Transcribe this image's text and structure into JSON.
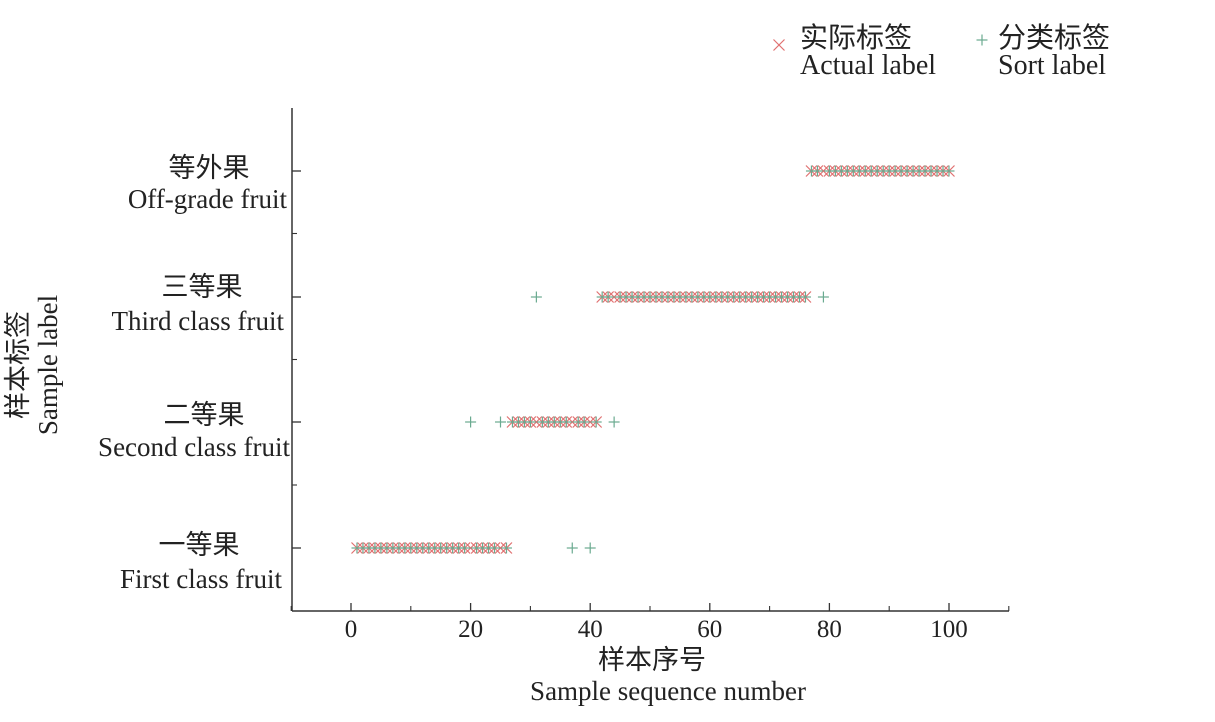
{
  "chart_data": {
    "type": "scatter",
    "title": "",
    "xlabel_zh": "样本序号",
    "xlabel_en": "Sample sequence number",
    "ylabel_zh": "样本标签",
    "ylabel_en": "Sample label",
    "xlim": [
      -10,
      110
    ],
    "x_ticks": [
      "0",
      "20",
      "40",
      "60",
      "80",
      "100"
    ],
    "categories": [
      {
        "zh": "一等果",
        "en": "First class fruit"
      },
      {
        "zh": "二等果",
        "en": "Second class fruit"
      },
      {
        "zh": "三等果",
        "en": "Third class fruit"
      },
      {
        "zh": "等外果",
        "en": "Off-grade fruit"
      }
    ],
    "legend_placement": "top-right",
    "grid": false,
    "series": [
      {
        "name_zh": "实际标签",
        "name_en": "Actual label",
        "marker": "x",
        "color": "#e07070",
        "points": [
          {
            "x": 1,
            "y": 1
          },
          {
            "x": 2,
            "y": 1
          },
          {
            "x": 3,
            "y": 1
          },
          {
            "x": 4,
            "y": 1
          },
          {
            "x": 5,
            "y": 1
          },
          {
            "x": 6,
            "y": 1
          },
          {
            "x": 7,
            "y": 1
          },
          {
            "x": 8,
            "y": 1
          },
          {
            "x": 9,
            "y": 1
          },
          {
            "x": 10,
            "y": 1
          },
          {
            "x": 11,
            "y": 1
          },
          {
            "x": 12,
            "y": 1
          },
          {
            "x": 13,
            "y": 1
          },
          {
            "x": 14,
            "y": 1
          },
          {
            "x": 15,
            "y": 1
          },
          {
            "x": 16,
            "y": 1
          },
          {
            "x": 17,
            "y": 1
          },
          {
            "x": 18,
            "y": 1
          },
          {
            "x": 19,
            "y": 1
          },
          {
            "x": 20,
            "y": 1
          },
          {
            "x": 21,
            "y": 1
          },
          {
            "x": 22,
            "y": 1
          },
          {
            "x": 23,
            "y": 1
          },
          {
            "x": 24,
            "y": 1
          },
          {
            "x": 25,
            "y": 1
          },
          {
            "x": 26,
            "y": 1
          },
          {
            "x": 27,
            "y": 2
          },
          {
            "x": 28,
            "y": 2
          },
          {
            "x": 29,
            "y": 2
          },
          {
            "x": 30,
            "y": 2
          },
          {
            "x": 31,
            "y": 2
          },
          {
            "x": 32,
            "y": 2
          },
          {
            "x": 33,
            "y": 2
          },
          {
            "x": 34,
            "y": 2
          },
          {
            "x": 35,
            "y": 2
          },
          {
            "x": 36,
            "y": 2
          },
          {
            "x": 37,
            "y": 2
          },
          {
            "x": 38,
            "y": 2
          },
          {
            "x": 39,
            "y": 2
          },
          {
            "x": 40,
            "y": 2
          },
          {
            "x": 41,
            "y": 2
          },
          {
            "x": 42,
            "y": 3
          },
          {
            "x": 43,
            "y": 3
          },
          {
            "x": 44,
            "y": 3
          },
          {
            "x": 45,
            "y": 3
          },
          {
            "x": 46,
            "y": 3
          },
          {
            "x": 47,
            "y": 3
          },
          {
            "x": 48,
            "y": 3
          },
          {
            "x": 49,
            "y": 3
          },
          {
            "x": 50,
            "y": 3
          },
          {
            "x": 51,
            "y": 3
          },
          {
            "x": 52,
            "y": 3
          },
          {
            "x": 53,
            "y": 3
          },
          {
            "x": 54,
            "y": 3
          },
          {
            "x": 55,
            "y": 3
          },
          {
            "x": 56,
            "y": 3
          },
          {
            "x": 57,
            "y": 3
          },
          {
            "x": 58,
            "y": 3
          },
          {
            "x": 59,
            "y": 3
          },
          {
            "x": 60,
            "y": 3
          },
          {
            "x": 61,
            "y": 3
          },
          {
            "x": 62,
            "y": 3
          },
          {
            "x": 63,
            "y": 3
          },
          {
            "x": 64,
            "y": 3
          },
          {
            "x": 65,
            "y": 3
          },
          {
            "x": 66,
            "y": 3
          },
          {
            "x": 67,
            "y": 3
          },
          {
            "x": 68,
            "y": 3
          },
          {
            "x": 69,
            "y": 3
          },
          {
            "x": 70,
            "y": 3
          },
          {
            "x": 71,
            "y": 3
          },
          {
            "x": 72,
            "y": 3
          },
          {
            "x": 73,
            "y": 3
          },
          {
            "x": 74,
            "y": 3
          },
          {
            "x": 75,
            "y": 3
          },
          {
            "x": 76,
            "y": 3
          },
          {
            "x": 77,
            "y": 4
          },
          {
            "x": 78,
            "y": 4
          },
          {
            "x": 79,
            "y": 4
          },
          {
            "x": 80,
            "y": 4
          },
          {
            "x": 81,
            "y": 4
          },
          {
            "x": 82,
            "y": 4
          },
          {
            "x": 83,
            "y": 4
          },
          {
            "x": 84,
            "y": 4
          },
          {
            "x": 85,
            "y": 4
          },
          {
            "x": 86,
            "y": 4
          },
          {
            "x": 87,
            "y": 4
          },
          {
            "x": 88,
            "y": 4
          },
          {
            "x": 89,
            "y": 4
          },
          {
            "x": 90,
            "y": 4
          },
          {
            "x": 91,
            "y": 4
          },
          {
            "x": 92,
            "y": 4
          },
          {
            "x": 93,
            "y": 4
          },
          {
            "x": 94,
            "y": 4
          },
          {
            "x": 95,
            "y": 4
          },
          {
            "x": 96,
            "y": 4
          },
          {
            "x": 97,
            "y": 4
          },
          {
            "x": 98,
            "y": 4
          },
          {
            "x": 99,
            "y": 4
          },
          {
            "x": 100,
            "y": 4
          }
        ]
      },
      {
        "name_zh": "分类标签",
        "name_en": "Sort label",
        "marker": "+",
        "color": "#6aaa90",
        "points": [
          {
            "x": 1,
            "y": 1
          },
          {
            "x": 2,
            "y": 1
          },
          {
            "x": 3,
            "y": 1
          },
          {
            "x": 4,
            "y": 1
          },
          {
            "x": 5,
            "y": 1
          },
          {
            "x": 6,
            "y": 1
          },
          {
            "x": 7,
            "y": 1
          },
          {
            "x": 8,
            "y": 1
          },
          {
            "x": 9,
            "y": 1
          },
          {
            "x": 10,
            "y": 1
          },
          {
            "x": 11,
            "y": 1
          },
          {
            "x": 12,
            "y": 1
          },
          {
            "x": 13,
            "y": 1
          },
          {
            "x": 14,
            "y": 1
          },
          {
            "x": 15,
            "y": 1
          },
          {
            "x": 16,
            "y": 1
          },
          {
            "x": 17,
            "y": 1
          },
          {
            "x": 18,
            "y": 1
          },
          {
            "x": 19,
            "y": 1
          },
          {
            "x": 21,
            "y": 1
          },
          {
            "x": 22,
            "y": 1
          },
          {
            "x": 23,
            "y": 1
          },
          {
            "x": 24,
            "y": 1
          },
          {
            "x": 26,
            "y": 1
          },
          {
            "x": 37,
            "y": 1
          },
          {
            "x": 40,
            "y": 1
          },
          {
            "x": 20,
            "y": 2
          },
          {
            "x": 25,
            "y": 2
          },
          {
            "x": 27,
            "y": 2
          },
          {
            "x": 28,
            "y": 2
          },
          {
            "x": 29,
            "y": 2
          },
          {
            "x": 30,
            "y": 2
          },
          {
            "x": 32,
            "y": 2
          },
          {
            "x": 33,
            "y": 2
          },
          {
            "x": 34,
            "y": 2
          },
          {
            "x": 35,
            "y": 2
          },
          {
            "x": 36,
            "y": 2
          },
          {
            "x": 38,
            "y": 2
          },
          {
            "x": 39,
            "y": 2
          },
          {
            "x": 41,
            "y": 2
          },
          {
            "x": 44,
            "y": 2
          },
          {
            "x": 31,
            "y": 3
          },
          {
            "x": 42,
            "y": 3
          },
          {
            "x": 43,
            "y": 3
          },
          {
            "x": 45,
            "y": 3
          },
          {
            "x": 46,
            "y": 3
          },
          {
            "x": 47,
            "y": 3
          },
          {
            "x": 48,
            "y": 3
          },
          {
            "x": 49,
            "y": 3
          },
          {
            "x": 50,
            "y": 3
          },
          {
            "x": 51,
            "y": 3
          },
          {
            "x": 52,
            "y": 3
          },
          {
            "x": 53,
            "y": 3
          },
          {
            "x": 54,
            "y": 3
          },
          {
            "x": 55,
            "y": 3
          },
          {
            "x": 56,
            "y": 3
          },
          {
            "x": 57,
            "y": 3
          },
          {
            "x": 58,
            "y": 3
          },
          {
            "x": 59,
            "y": 3
          },
          {
            "x": 60,
            "y": 3
          },
          {
            "x": 61,
            "y": 3
          },
          {
            "x": 62,
            "y": 3
          },
          {
            "x": 63,
            "y": 3
          },
          {
            "x": 64,
            "y": 3
          },
          {
            "x": 65,
            "y": 3
          },
          {
            "x": 66,
            "y": 3
          },
          {
            "x": 67,
            "y": 3
          },
          {
            "x": 68,
            "y": 3
          },
          {
            "x": 69,
            "y": 3
          },
          {
            "x": 70,
            "y": 3
          },
          {
            "x": 71,
            "y": 3
          },
          {
            "x": 72,
            "y": 3
          },
          {
            "x": 73,
            "y": 3
          },
          {
            "x": 74,
            "y": 3
          },
          {
            "x": 75,
            "y": 3
          },
          {
            "x": 76,
            "y": 3
          },
          {
            "x": 79,
            "y": 3
          },
          {
            "x": 77,
            "y": 4
          },
          {
            "x": 78,
            "y": 4
          },
          {
            "x": 80,
            "y": 4
          },
          {
            "x": 81,
            "y": 4
          },
          {
            "x": 82,
            "y": 4
          },
          {
            "x": 83,
            "y": 4
          },
          {
            "x": 84,
            "y": 4
          },
          {
            "x": 85,
            "y": 4
          },
          {
            "x": 86,
            "y": 4
          },
          {
            "x": 87,
            "y": 4
          },
          {
            "x": 88,
            "y": 4
          },
          {
            "x": 89,
            "y": 4
          },
          {
            "x": 90,
            "y": 4
          },
          {
            "x": 91,
            "y": 4
          },
          {
            "x": 92,
            "y": 4
          },
          {
            "x": 93,
            "y": 4
          },
          {
            "x": 94,
            "y": 4
          },
          {
            "x": 95,
            "y": 4
          },
          {
            "x": 96,
            "y": 4
          },
          {
            "x": 97,
            "y": 4
          },
          {
            "x": 98,
            "y": 4
          },
          {
            "x": 99,
            "y": 4
          },
          {
            "x": 100,
            "y": 4
          }
        ]
      }
    ]
  }
}
